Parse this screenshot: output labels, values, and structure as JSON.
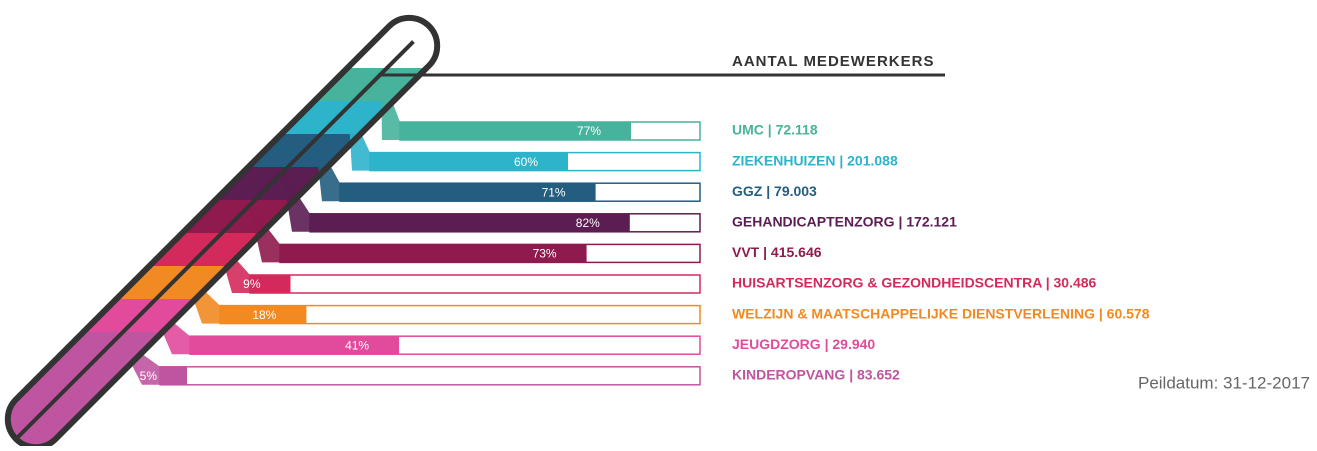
{
  "chart_data": {
    "type": "thermometer-bar",
    "title": "AANTAL MEDEWERKERS",
    "note": "Peildatum: 31-12-2017",
    "categories": [
      "UMC | 72.118",
      "ZIEKENHUIZEN | 201.088",
      "GGZ | 79.003",
      "GEHANDICAPTENZORG | 172.121",
      "VVT | 415.646",
      "HUISARTSENZORG & GEZONDHEIDSCENTRA | 30.486",
      "WELZIJN & MAATSCHAPPELIJKE DIENSTVERLENING | 60.578",
      "JEUGDZORG | 29.940",
      "KINDEROPVANG | 83.652"
    ],
    "values": [
      77,
      60,
      71,
      82,
      73,
      9,
      18,
      41,
      5
    ],
    "value_labels": [
      "77%",
      "60%",
      "71%",
      "82%",
      "73%",
      "9%",
      "18%",
      "41%",
      "5%"
    ],
    "colors": [
      "#47b39c",
      "#2db3ca",
      "#235d80",
      "#5b1d52",
      "#8f1a4d",
      "#d42a5b",
      "#f18a22",
      "#e24a9c",
      "#bf55a1"
    ],
    "xlim": [
      0,
      100
    ]
  }
}
